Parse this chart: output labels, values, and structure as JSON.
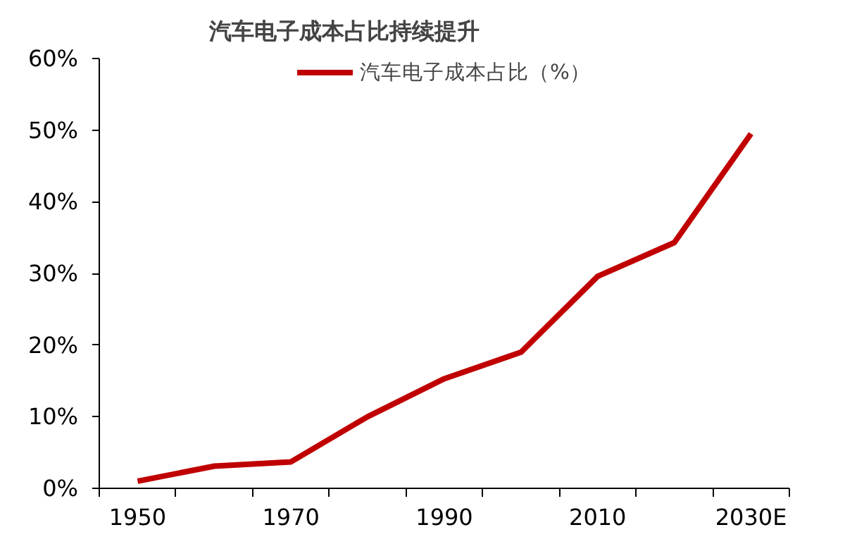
{
  "chart_data": {
    "type": "line",
    "title": "汽车电子成本占比持续提升",
    "categories": [
      "1950",
      null,
      "1970",
      null,
      "1990",
      null,
      "2010",
      null,
      "2030E"
    ],
    "series": [
      {
        "name": "汽车电子成本占比（%）",
        "color": "#c00000",
        "values": [
          1.0,
          3.1,
          3.7,
          10.0,
          15.3,
          19.0,
          29.6,
          34.3,
          49.5
        ]
      }
    ],
    "ylim": [
      0,
      60
    ],
    "yticks": [
      {
        "value": 0,
        "label": "0%"
      },
      {
        "value": 10,
        "label": "10%"
      },
      {
        "value": 20,
        "label": "20%"
      },
      {
        "value": 30,
        "label": "30%"
      },
      {
        "value": 40,
        "label": "40%"
      },
      {
        "value": 50,
        "label": "50%"
      },
      {
        "value": 60,
        "label": "60%"
      }
    ],
    "legend": "top",
    "grid": false,
    "marker": "none",
    "line_style": "solid"
  }
}
